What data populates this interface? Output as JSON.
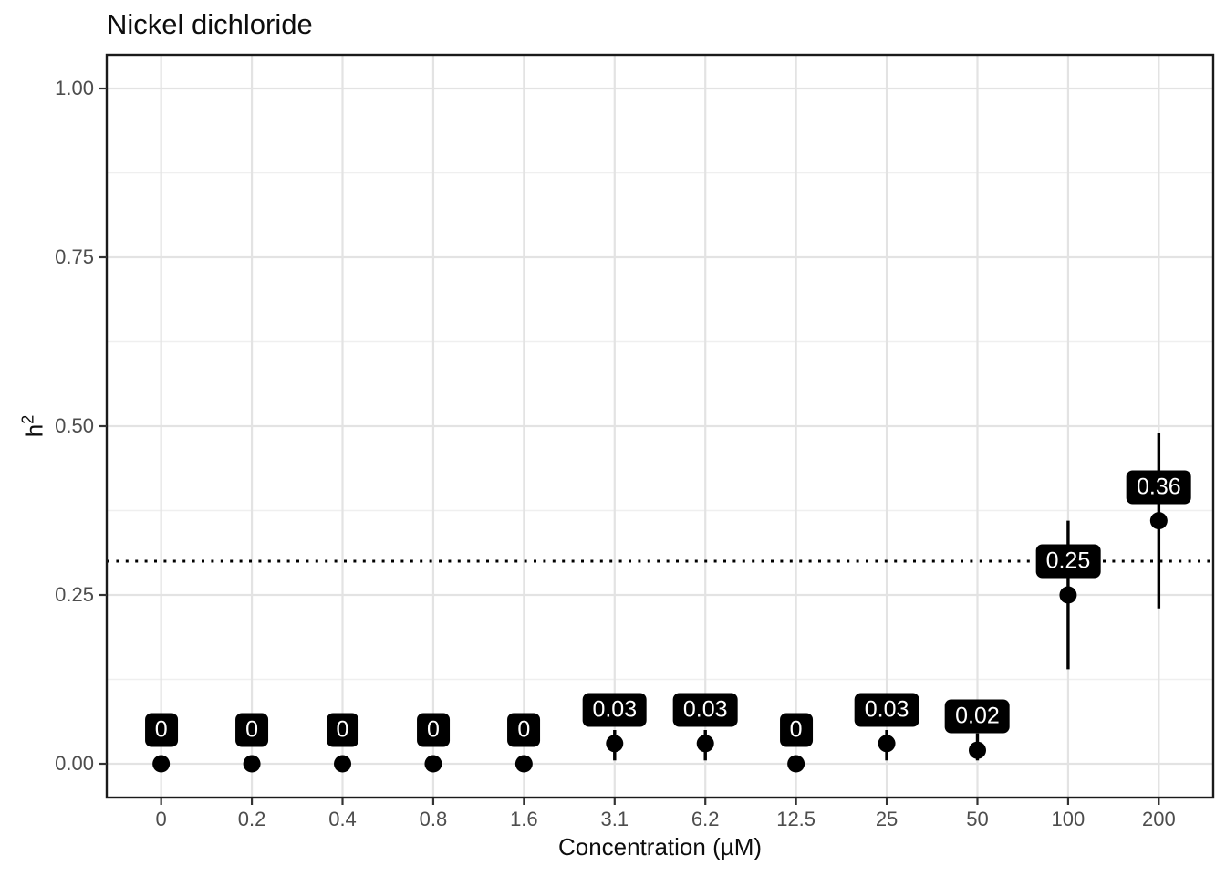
{
  "chart_data": {
    "type": "scatter",
    "subtype": "pointrange-with-labels",
    "title": "Nickel dichloride",
    "xlabel": "Concentration (µM)",
    "ylabel": "h²",
    "ylabel_base": "h",
    "ylabel_exponent": "2",
    "categories": [
      "0",
      "0.2",
      "0.4",
      "0.8",
      "1.6",
      "3.1",
      "6.2",
      "12.5",
      "25",
      "50",
      "100",
      "200"
    ],
    "values": [
      0,
      0,
      0,
      0,
      0,
      0.03,
      0.03,
      0,
      0.03,
      0.02,
      0.25,
      0.36
    ],
    "point_labels": [
      "0",
      "0",
      "0",
      "0",
      "0",
      "0.03",
      "0.03",
      "0",
      "0.03",
      "0.02",
      "0.25",
      "0.36"
    ],
    "ci_low": [
      0,
      0,
      0,
      0,
      0,
      0.005,
      0.005,
      0,
      0.005,
      0.005,
      0.14,
      0.23
    ],
    "ci_high": [
      0,
      0,
      0,
      0,
      0,
      0.05,
      0.05,
      0,
      0.05,
      0.045,
      0.36,
      0.49
    ],
    "y_tick_labels": [
      "0.00",
      "0.25",
      "0.50",
      "0.75",
      "1.00"
    ],
    "y_tick_values": [
      0,
      0.25,
      0.5,
      0.75,
      1.0
    ],
    "ylim": [
      -0.05,
      1.05
    ],
    "reference_line_y": 0.3,
    "reference_line_style": "dotted",
    "label_offset_y": 0.05,
    "grid": "horizontal major+minor, vertical major per category",
    "legend": "none",
    "colors": {
      "point": "#000000",
      "error_bar": "#000000",
      "reference_line": "#000000",
      "label_bg": "#000000",
      "label_text": "#ffffff",
      "grid_major": "#e3e3e3",
      "grid_minor": "#efefef",
      "panel_border": "#1a1a1a",
      "axis_tick": "#333333",
      "tick_label": "#4d4d4d",
      "axis_title": "#0d0d0d",
      "background": "#ffffff"
    }
  }
}
